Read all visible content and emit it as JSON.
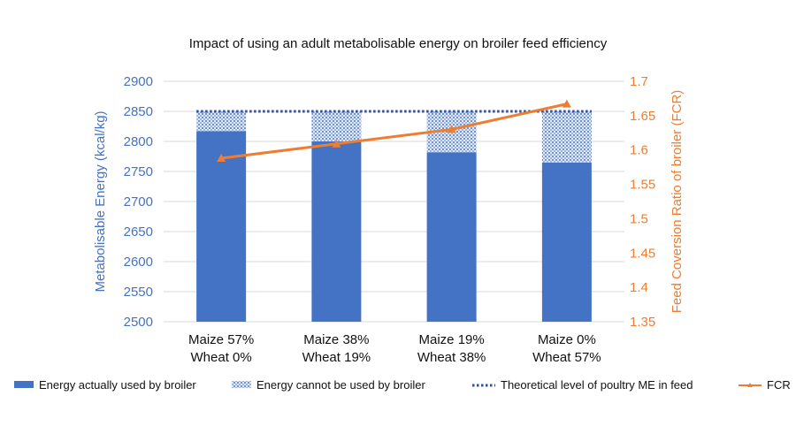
{
  "chart_data": {
    "type": "bar",
    "title": "Impact of using an adult metabolisable energy on broiler feed efficiency",
    "categories": [
      [
        "Maize 57%",
        "Wheat 0%"
      ],
      [
        "Maize 38%",
        "Wheat 19%"
      ],
      [
        "Maize 19%",
        "Wheat 38%"
      ],
      [
        "Maize 0%",
        "Wheat 57%"
      ]
    ],
    "ylabel_left": "Metabolisable Energy (kcal/kg)",
    "ylabel_right": "Feed Coversion Ratio of broiler (FCR)",
    "ylim_left": [
      2500,
      2900
    ],
    "yticks_left": [
      "2500",
      "2550",
      "2600",
      "2650",
      "2700",
      "2750",
      "2800",
      "2850",
      "2900"
    ],
    "ylim_right": [
      1.35,
      1.7
    ],
    "yticks_right": [
      "1.35",
      "1.4",
      "1.45",
      "1.5",
      "1.55",
      "1.6",
      "1.65",
      "1.7"
    ],
    "series": [
      {
        "name": "Energy actually used by broiler",
        "kind": "stacked-bar",
        "color": "#4472C4",
        "values": [
          2817,
          2800,
          2782,
          2765
        ]
      },
      {
        "name": "Energy cannot be used by broiler",
        "kind": "stacked-bar-pattern",
        "color": "#4472C4",
        "values": [
          33,
          50,
          68,
          85
        ]
      },
      {
        "name": "Theoretical level of poultry ME in feed",
        "kind": "dotted-line",
        "color": "#2F4F9F",
        "values": [
          2850,
          2850,
          2850,
          2850
        ]
      },
      {
        "name": "FCR",
        "kind": "line-marker",
        "axis": "right",
        "color": "#ED7D31",
        "values": [
          1.588,
          1.609,
          1.63,
          1.667
        ]
      }
    ],
    "grid": true,
    "legend_position": "bottom"
  }
}
